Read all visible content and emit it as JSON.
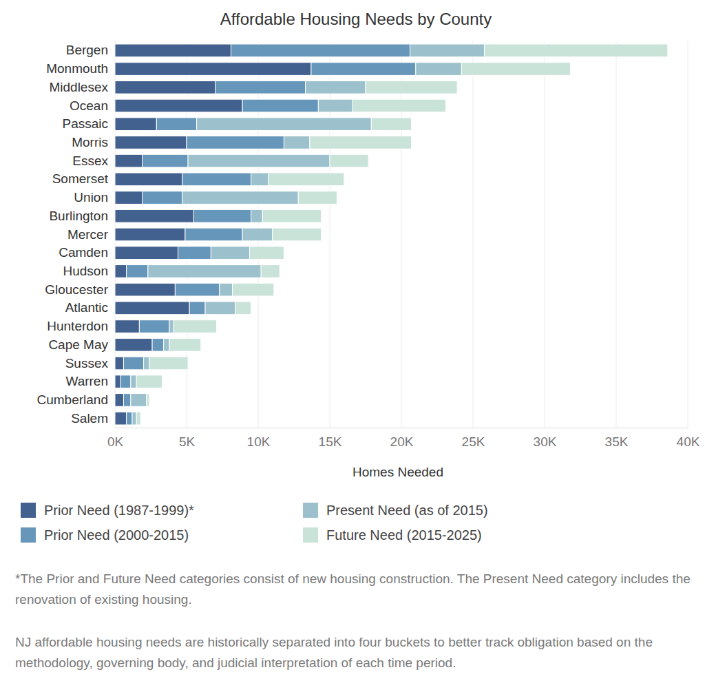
{
  "chart_data": {
    "type": "bar",
    "orientation": "horizontal",
    "stacked": true,
    "title": "Affordable Housing Needs by County",
    "x_label": "Homes Needed",
    "categories": [
      "Bergen",
      "Monmouth",
      "Middlesex",
      "Ocean",
      "Passaic",
      "Morris",
      "Essex",
      "Somerset",
      "Union",
      "Burlington",
      "Mercer",
      "Camden",
      "Hudson",
      "Gloucester",
      "Atlantic",
      "Hunterdon",
      "Cape May",
      "Sussex",
      "Warren",
      "Cumberland",
      "Salem"
    ],
    "series": [
      {
        "name": "Prior Need (1987-1999)*",
        "color": "#43618f",
        "values": [
          8100,
          13700,
          7000,
          8900,
          2900,
          5000,
          1900,
          4700,
          1900,
          5500,
          4900,
          4400,
          800,
          4200,
          5200,
          1700,
          2600,
          600,
          400,
          600,
          800
        ]
      },
      {
        "name": "Prior Need (2000-2015)",
        "color": "#6796bb",
        "values": [
          12500,
          7300,
          6300,
          5300,
          2800,
          6800,
          3200,
          4800,
          2800,
          4000,
          4000,
          2300,
          1500,
          3100,
          1100,
          2100,
          800,
          1400,
          700,
          500,
          400
        ]
      },
      {
        "name": "Present Need (as of 2015)",
        "color": "#9cc1cc",
        "values": [
          5200,
          3200,
          4200,
          2400,
          12200,
          1800,
          9900,
          1200,
          8100,
          800,
          2100,
          2700,
          7900,
          900,
          2100,
          300,
          400,
          400,
          400,
          1100,
          300
        ]
      },
      {
        "name": "Future Need (2015-2025)",
        "color": "#c9e3d9",
        "values": [
          12800,
          7600,
          6400,
          6500,
          2800,
          7100,
          2700,
          5300,
          2700,
          4100,
          3400,
          2400,
          1300,
          2900,
          1100,
          3000,
          2200,
          2700,
          1800,
          200,
          300
        ]
      }
    ],
    "xlim": [
      0,
      40000
    ],
    "xticks": [
      {
        "value": 0,
        "label": "0K"
      },
      {
        "value": 5000,
        "label": "5K"
      },
      {
        "value": 10000,
        "label": "10K"
      },
      {
        "value": 15000,
        "label": "15K"
      },
      {
        "value": 20000,
        "label": "20K"
      },
      {
        "value": 25000,
        "label": "25K"
      },
      {
        "value": 30000,
        "label": "30K"
      },
      {
        "value": 35000,
        "label": "35K"
      },
      {
        "value": 40000,
        "label": "40K"
      }
    ],
    "grid": true,
    "legend": "bottom",
    "annotations": [
      "*The Prior and Future Need categories consist of new housing construction. The Present Need category includes the renovation of existing housing.",
      "NJ affordable housing needs are historically separated into four buckets to better track obligation based on the methodology, governing body, and judicial interpretation of each time period."
    ]
  }
}
